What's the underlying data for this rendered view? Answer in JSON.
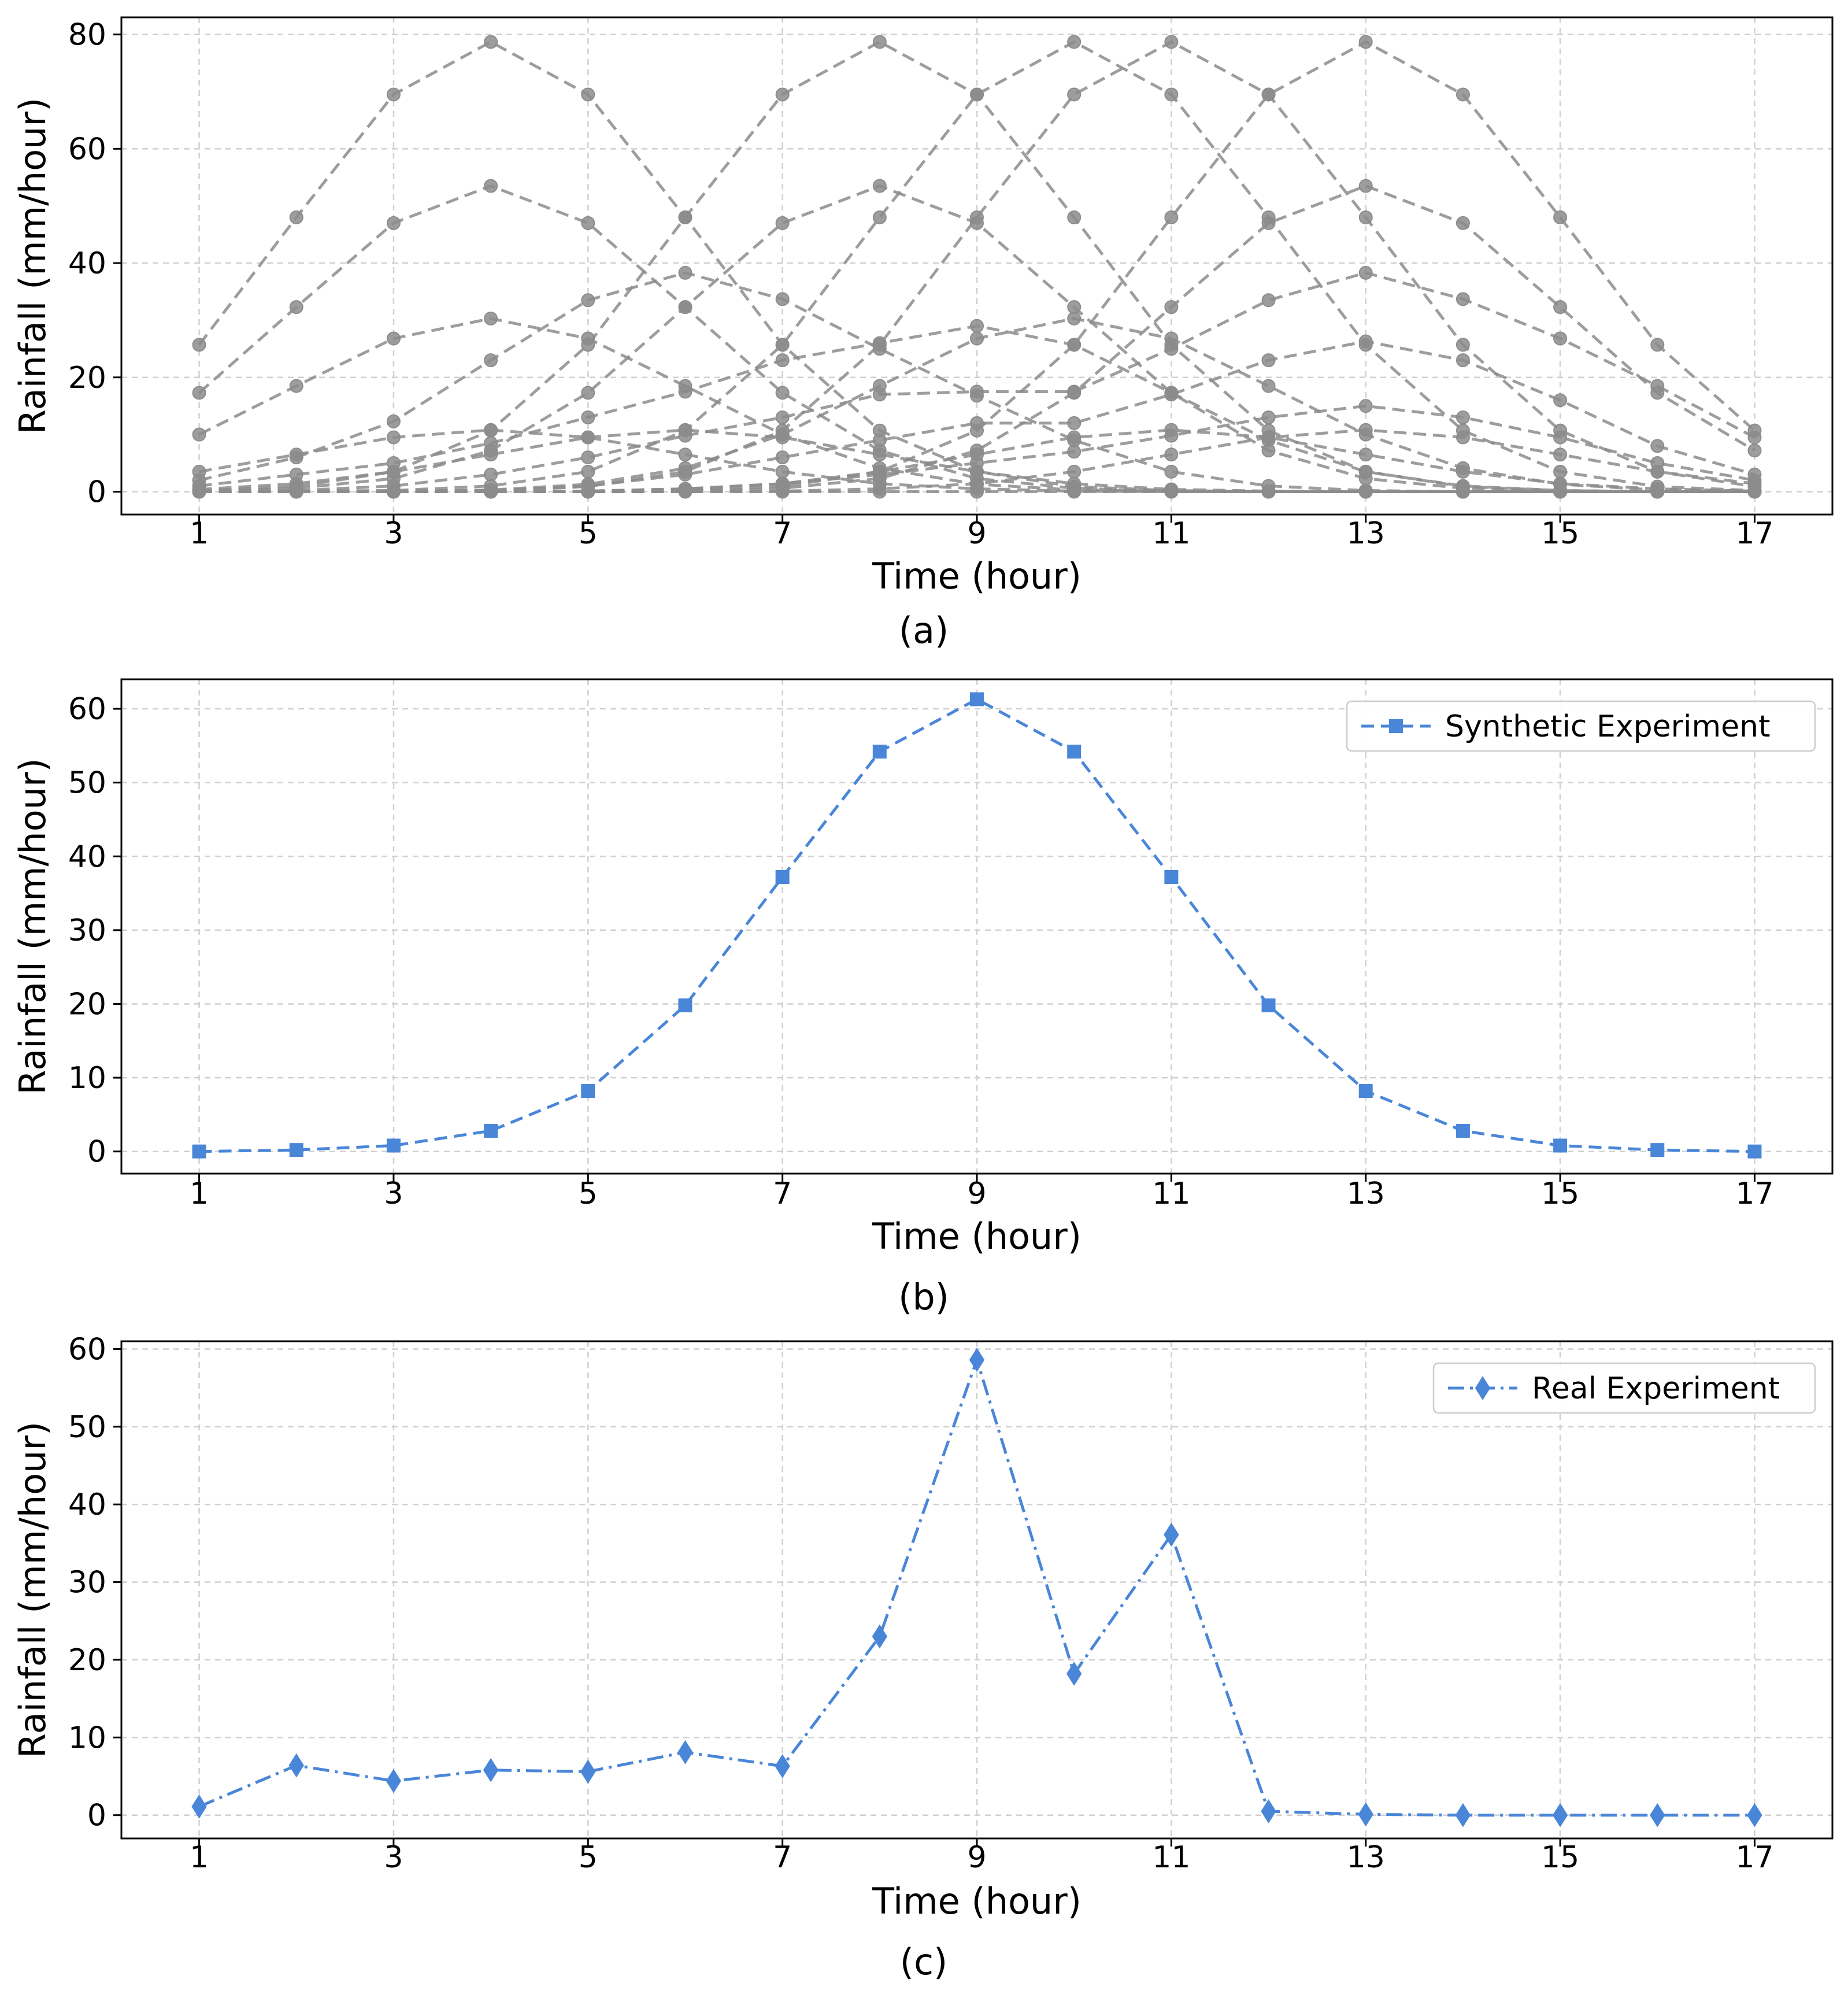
{
  "chart_data": [
    {
      "type": "line",
      "caption": "(a)",
      "xlabel": "Time (hour)",
      "ylabel": "Rainfall (mm/hour)",
      "xlim": [
        0.2,
        17.8
      ],
      "ylim": [
        -4,
        83
      ],
      "xticks": [
        1,
        3,
        5,
        7,
        9,
        11,
        13,
        15,
        17
      ],
      "yticks": [
        0,
        20,
        40,
        60,
        80
      ],
      "grid": true,
      "color": "#8c8c8c",
      "line_style": "dashed",
      "marker": "circle",
      "x": [
        1,
        2,
        3,
        4,
        5,
        6,
        7,
        8,
        9,
        10,
        11,
        12,
        13,
        14,
        15,
        16,
        17
      ],
      "series": [
        {
          "values": [
            25.7,
            48.0,
            69.5,
            78.7,
            69.5,
            48.0,
            25.7,
            10.7,
            3.5,
            0.9,
            0.2,
            0.0,
            0.0,
            0.0,
            0.0,
            0.0,
            0.0
          ]
        },
        {
          "values": [
            17.3,
            32.3,
            47.0,
            53.5,
            47.0,
            32.3,
            17.3,
            7.2,
            2.3,
            0.6,
            0.1,
            0.0,
            0.0,
            0.0,
            0.0,
            0.0,
            0.0
          ]
        },
        {
          "values": [
            10.0,
            18.5,
            26.8,
            30.3,
            26.8,
            18.5,
            10.0,
            4.1,
            1.3,
            0.3,
            0.1,
            0.0,
            0.0,
            0.0,
            0.0,
            0.0,
            0.0
          ]
        },
        {
          "values": [
            0.0,
            0.0,
            0.0,
            0.0,
            0.0,
            0.0,
            0.0,
            0.0,
            0.0,
            0.0,
            0.0,
            0.0,
            0.0,
            0.0,
            0.0,
            0.0,
            0.0
          ]
        },
        {
          "values": [
            0.0,
            0.1,
            0.2,
            1.0,
            3.5,
            10.7,
            25.7,
            48.0,
            69.5,
            78.7,
            69.5,
            48.0,
            25.7,
            10.7,
            3.5,
            0.9,
            0.2
          ]
        },
        {
          "values": [
            0.0,
            0.0,
            0.1,
            0.3,
            1.3,
            4.1,
            10.0,
            18.5,
            26.8,
            30.3,
            26.8,
            18.5,
            10.0,
            4.1,
            1.3,
            0.3,
            0.1
          ]
        },
        {
          "values": [
            0.0,
            0.0,
            0.0,
            0.0,
            0.0,
            0.2,
            0.9,
            3.5,
            10.7,
            25.7,
            48.0,
            69.5,
            78.7,
            69.5,
            48.0,
            25.7,
            10.7
          ]
        },
        {
          "values": [
            0.0,
            0.0,
            0.0,
            0.0,
            0.0,
            0.1,
            0.6,
            2.3,
            7.2,
            17.3,
            32.3,
            47.0,
            53.5,
            47.0,
            32.3,
            17.3,
            7.2
          ]
        },
        {
          "values": [
            0.2,
            0.9,
            3.5,
            10.7,
            25.7,
            48.0,
            69.5,
            78.7,
            69.5,
            48.0,
            25.7,
            10.7,
            3.5,
            0.9,
            0.2,
            0.0,
            0.0
          ]
        },
        {
          "values": [
            0.1,
            0.6,
            2.3,
            7.2,
            17.3,
            32.3,
            47.0,
            53.5,
            47.0,
            32.3,
            17.3,
            7.2,
            2.3,
            0.6,
            0.1,
            0.0,
            0.0
          ]
        },
        {
          "values": [
            0.0,
            0.0,
            0.0,
            0.1,
            0.9,
            3.5,
            10.7,
            25.7,
            48.0,
            69.5,
            78.7,
            69.5,
            48.0,
            25.7,
            10.7,
            3.5,
            0.9
          ]
        },
        {
          "values": [
            3.5,
            6.5,
            9.5,
            10.8,
            9.5,
            6.5,
            3.5,
            1.4,
            0.5,
            0.1,
            0.0,
            0.0,
            0.0,
            0.0,
            0.0,
            0.0,
            0.0
          ]
        },
        {
          "values": [
            0.0,
            0.0,
            0.0,
            0.0,
            0.1,
            0.5,
            1.4,
            3.5,
            6.5,
            9.5,
            10.8,
            9.5,
            6.5,
            3.5,
            1.4,
            0.5,
            0.1
          ]
        },
        {
          "values": [
            0.0,
            0.0,
            0.0,
            0.0,
            0.0,
            0.0,
            0.1,
            0.5,
            1.4,
            3.5,
            6.5,
            9.5,
            10.8,
            9.5,
            6.5,
            3.5,
            1.4
          ]
        },
        {
          "values": [
            0.4,
            1.4,
            3.5,
            6.5,
            9.5,
            10.8,
            9.5,
            6.5,
            3.5,
            1.4,
            0.4,
            0.1,
            0.0,
            0.0,
            0.0,
            0.0,
            0.0
          ]
        },
        {
          "values": [
            2.0,
            6.0,
            12.3,
            23.0,
            33.5,
            38.3,
            33.7,
            25.0,
            16.8,
            9.0,
            3.5,
            1.0,
            0.2,
            0.0,
            0.0,
            0.0,
            0.0
          ]
        },
        {
          "values": [
            1.0,
            3.0,
            5.0,
            8.5,
            13.0,
            17.5,
            23.0,
            26.0,
            29.0,
            25.7,
            17.3,
            9.0,
            3.5,
            1.0,
            0.2,
            0.0,
            0.0
          ]
        },
        {
          "values": [
            0.0,
            0.2,
            1.0,
            3.0,
            6.0,
            9.8,
            13.0,
            17.0,
            17.5,
            17.5,
            25.0,
            33.5,
            38.3,
            33.7,
            26.8,
            18.5,
            9.5
          ]
        },
        {
          "values": [
            0.0,
            0.0,
            0.1,
            0.2,
            1.0,
            3.0,
            6.0,
            9.0,
            12.0,
            12.0,
            17.0,
            23.0,
            26.3,
            23.0,
            16.0,
            8.0,
            3.0
          ]
        },
        {
          "values": [
            0.0,
            0.0,
            0.0,
            0.0,
            0.1,
            0.5,
            1.4,
            3.0,
            5.0,
            7.0,
            9.8,
            13.0,
            15.0,
            13.0,
            9.5,
            5.0,
            2.0
          ]
        }
      ]
    },
    {
      "type": "line",
      "caption": "(b)",
      "xlabel": "Time (hour)",
      "ylabel": "Rainfall (mm/hour)",
      "xlim": [
        0.2,
        17.8
      ],
      "ylim": [
        -3,
        64
      ],
      "xticks": [
        1,
        3,
        5,
        7,
        9,
        11,
        13,
        15,
        17
      ],
      "yticks": [
        0,
        10,
        20,
        30,
        40,
        50,
        60
      ],
      "grid": true,
      "legend": "top-right",
      "color": "#4a86d8",
      "line_style": "dashed",
      "marker": "square",
      "x": [
        1,
        2,
        3,
        4,
        5,
        6,
        7,
        8,
        9,
        10,
        11,
        12,
        13,
        14,
        15,
        16,
        17
      ],
      "series": [
        {
          "name": "Synthetic Experiment",
          "values": [
            0.0,
            0.2,
            0.8,
            2.8,
            8.2,
            19.8,
            37.2,
            54.2,
            61.3,
            54.2,
            37.2,
            19.8,
            8.2,
            2.8,
            0.8,
            0.2,
            0.0
          ]
        }
      ]
    },
    {
      "type": "line",
      "caption": "(c)",
      "xlabel": "Time (hour)",
      "ylabel": "Rainfall (mm/hour)",
      "xlim": [
        0.2,
        17.8
      ],
      "ylim": [
        -3,
        61
      ],
      "xticks": [
        1,
        3,
        5,
        7,
        9,
        11,
        13,
        15,
        17
      ],
      "yticks": [
        0,
        10,
        20,
        30,
        40,
        50,
        60
      ],
      "grid": true,
      "legend": "top-right",
      "color": "#4a86d8",
      "line_style": "dashdot",
      "marker": "diamond",
      "x": [
        1,
        2,
        3,
        4,
        5,
        6,
        7,
        8,
        9,
        10,
        11,
        12,
        13,
        14,
        15,
        16,
        17
      ],
      "series": [
        {
          "name": "Real Experiment",
          "values": [
            1.1,
            6.4,
            4.4,
            5.8,
            5.6,
            8.1,
            6.3,
            23.0,
            58.6,
            18.2,
            36.1,
            0.5,
            0.1,
            0.0,
            0.0,
            0.0,
            0.0
          ]
        }
      ]
    }
  ]
}
